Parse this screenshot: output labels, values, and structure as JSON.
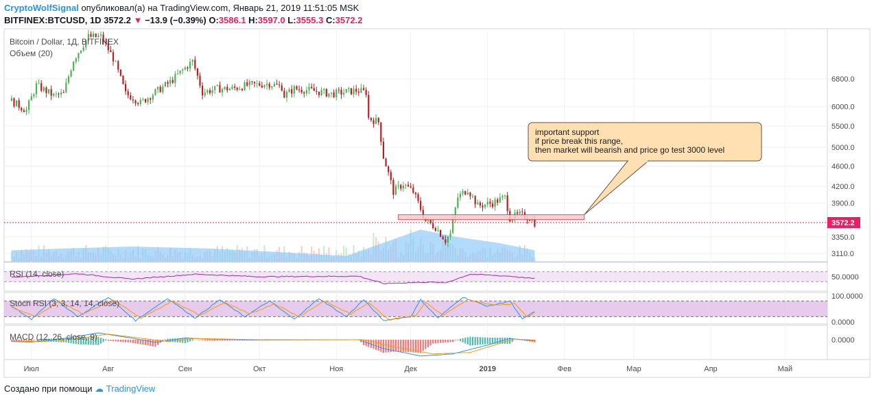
{
  "header": {
    "author": "CryptoWolfSignal",
    "published_text": "опубликовал(а) на TradingView.com, Январь 21, 2019 11:51:05 MSK",
    "symbol": "BITFINEX:BTCUSD, 1D",
    "last": "3572.2",
    "change": "−13.9 (−0.39%)",
    "o_label": "O:",
    "o_value": "3586.1",
    "h_label": "H:",
    "h_value": "3597.0",
    "l_label": "L:",
    "l_value": "3555.3",
    "c_label": "C:",
    "c_value": "3572.2"
  },
  "footer": {
    "created_text": "Создано при помощи",
    "brand": "TradingView"
  },
  "colors": {
    "up": "#4caf50",
    "down": "#b71c1c",
    "volume_ma": "#90caf9",
    "rsi": "#9c27b0",
    "stoch_k": "#2196f3",
    "stoch_d": "#ff9800",
    "macd": "#2196f3",
    "signal": "#ff9800",
    "support_box": "#f8c8cc",
    "note_bg": "#ffe0b2",
    "price_label": "#e91e63"
  },
  "chart_data": {
    "type": "candlestick",
    "legend_title": "Bitcoin / Dollar, 1Д, BITFINEX",
    "volume_label": "Объем (20)",
    "x_ticks": [
      "Июл",
      "Авг",
      "Сен",
      "Окт",
      "Ноя",
      "Дек",
      "2019",
      "Фев",
      "Мар",
      "Апр",
      "Май"
    ],
    "y_ticks": [
      "6800.0",
      "6000.0",
      "5500.0",
      "5000.0",
      "4600.0",
      "4200.0",
      "3900.0",
      "3350.0",
      "3110.0"
    ],
    "y_scale": "log",
    "last_price_label": "3572.2",
    "price_path": [
      [
        "2018-06-23",
        6150
      ],
      [
        "2018-06-29",
        5900
      ],
      [
        "2018-07-03",
        6600
      ],
      [
        "2018-07-10",
        6300
      ],
      [
        "2018-07-14",
        6350
      ],
      [
        "2018-07-18",
        7400
      ],
      [
        "2018-07-24",
        8200
      ],
      [
        "2018-07-29",
        8200
      ],
      [
        "2018-08-03",
        7450
      ],
      [
        "2018-08-08",
        6350
      ],
      [
        "2018-08-11",
        6250
      ],
      [
        "2018-08-14",
        6100
      ],
      [
        "2018-08-20",
        6400
      ],
      [
        "2018-08-26",
        6700
      ],
      [
        "2018-09-04",
        7350
      ],
      [
        "2018-09-08",
        6400
      ],
      [
        "2018-09-14",
        6500
      ],
      [
        "2018-09-20",
        6500
      ],
      [
        "2018-09-26",
        6600
      ],
      [
        "2018-10-05",
        6650
      ],
      [
        "2018-10-10",
        6550
      ],
      [
        "2018-10-11",
        6300
      ],
      [
        "2018-10-15",
        6500
      ],
      [
        "2018-10-22",
        6450
      ],
      [
        "2018-10-30",
        6350
      ],
      [
        "2018-11-09",
        6450
      ],
      [
        "2018-11-13",
        6400
      ],
      [
        "2018-11-14",
        5700
      ],
      [
        "2018-11-18",
        5600
      ],
      [
        "2018-11-20",
        4800
      ],
      [
        "2018-11-24",
        4100
      ],
      [
        "2018-11-28",
        4250
      ],
      [
        "2018-12-02",
        4100
      ],
      [
        "2018-12-07",
        3600
      ],
      [
        "2018-12-11",
        3500
      ],
      [
        "2018-12-15",
        3300
      ],
      [
        "2018-12-17",
        3400
      ],
      [
        "2018-12-20",
        4000
      ],
      [
        "2018-12-24",
        4150
      ],
      [
        "2018-12-28",
        3850
      ],
      [
        "2019-01-03",
        3900
      ],
      [
        "2019-01-08",
        4000
      ],
      [
        "2019-01-10",
        3650
      ],
      [
        "2019-01-14",
        3700
      ],
      [
        "2019-01-18",
        3650
      ],
      [
        "2019-01-20",
        3572
      ]
    ],
    "volume_ma": [
      [
        "2018-06-23",
        0.3
      ],
      [
        "2018-07-15",
        0.35
      ],
      [
        "2018-08-10",
        0.4
      ],
      [
        "2018-09-10",
        0.35
      ],
      [
        "2018-10-10",
        0.25
      ],
      [
        "2018-11-05",
        0.15
      ],
      [
        "2018-11-20",
        0.5
      ],
      [
        "2018-12-05",
        0.85
      ],
      [
        "2018-12-20",
        0.65
      ],
      [
        "2019-01-05",
        0.5
      ],
      [
        "2019-01-20",
        0.3
      ]
    ],
    "rsi": {
      "label": "RSI (14, close)",
      "upper": 70,
      "lower": 30,
      "tick": "50.0000",
      "values": [
        [
          "2018-06-23",
          48
        ],
        [
          "2018-07-20",
          62
        ],
        [
          "2018-08-10",
          40
        ],
        [
          "2018-09-05",
          60
        ],
        [
          "2018-10-01",
          50
        ],
        [
          "2018-11-10",
          52
        ],
        [
          "2018-11-20",
          22
        ],
        [
          "2018-12-07",
          28
        ],
        [
          "2018-12-15",
          25
        ],
        [
          "2018-12-25",
          60
        ],
        [
          "2019-01-10",
          52
        ],
        [
          "2019-01-20",
          42
        ]
      ]
    },
    "stoch_rsi": {
      "label": "Stoch RSI (3, 3, 14, 14, close)",
      "ticks": [
        "100.0000",
        "0.0000"
      ],
      "k_values": [
        [
          "2018-06-23",
          60
        ],
        [
          "2018-07-01",
          10
        ],
        [
          "2018-07-10",
          90
        ],
        [
          "2018-07-20",
          20
        ],
        [
          "2018-08-01",
          95
        ],
        [
          "2018-08-12",
          5
        ],
        [
          "2018-08-25",
          90
        ],
        [
          "2018-09-05",
          15
        ],
        [
          "2018-09-15",
          85
        ],
        [
          "2018-09-25",
          20
        ],
        [
          "2018-10-05",
          80
        ],
        [
          "2018-10-15",
          10
        ],
        [
          "2018-10-25",
          90
        ],
        [
          "2018-11-05",
          20
        ],
        [
          "2018-11-12",
          85
        ],
        [
          "2018-11-20",
          5
        ],
        [
          "2018-12-01",
          20
        ],
        [
          "2018-12-05",
          85
        ],
        [
          "2018-12-12",
          15
        ],
        [
          "2018-12-22",
          95
        ],
        [
          "2019-01-01",
          60
        ],
        [
          "2019-01-10",
          80
        ],
        [
          "2019-01-15",
          10
        ],
        [
          "2019-01-20",
          40
        ]
      ],
      "d_values": [
        [
          "2018-06-23",
          55
        ],
        [
          "2018-07-03",
          20
        ],
        [
          "2018-07-12",
          80
        ],
        [
          "2018-07-22",
          30
        ],
        [
          "2018-08-03",
          85
        ],
        [
          "2018-08-14",
          15
        ],
        [
          "2018-08-27",
          80
        ],
        [
          "2018-09-07",
          25
        ],
        [
          "2018-09-17",
          75
        ],
        [
          "2018-09-27",
          30
        ],
        [
          "2018-10-07",
          70
        ],
        [
          "2018-10-17",
          20
        ],
        [
          "2018-10-27",
          80
        ],
        [
          "2018-11-07",
          30
        ],
        [
          "2018-11-14",
          75
        ],
        [
          "2018-11-22",
          10
        ],
        [
          "2018-12-03",
          25
        ],
        [
          "2018-12-07",
          75
        ],
        [
          "2018-12-14",
          25
        ],
        [
          "2018-12-24",
          85
        ],
        [
          "2019-01-03",
          65
        ],
        [
          "2019-01-12",
          70
        ],
        [
          "2019-01-17",
          20
        ],
        [
          "2019-01-20",
          35
        ]
      ]
    },
    "macd": {
      "label": "MACD (12, 26, close, 9)",
      "tick": "0.0000",
      "macd_values": [
        [
          "2018-06-23",
          -60
        ],
        [
          "2018-07-01",
          -80
        ],
        [
          "2018-07-15",
          50
        ],
        [
          "2018-07-28",
          230
        ],
        [
          "2018-08-10",
          60
        ],
        [
          "2018-08-20",
          -90
        ],
        [
          "2018-09-01",
          60
        ],
        [
          "2018-09-10",
          20
        ],
        [
          "2018-10-01",
          -10
        ],
        [
          "2018-11-10",
          0
        ],
        [
          "2018-11-20",
          -300
        ],
        [
          "2018-12-05",
          -550
        ],
        [
          "2018-12-18",
          -480
        ],
        [
          "2019-01-01",
          -180
        ],
        [
          "2019-01-10",
          40
        ],
        [
          "2019-01-20",
          -40
        ]
      ],
      "signal_values": [
        [
          "2018-06-23",
          -40
        ],
        [
          "2018-07-05",
          -70
        ],
        [
          "2018-07-20",
          40
        ],
        [
          "2018-08-01",
          190
        ],
        [
          "2018-08-15",
          40
        ],
        [
          "2018-08-25",
          -60
        ],
        [
          "2018-09-05",
          40
        ],
        [
          "2018-10-01",
          0
        ],
        [
          "2018-11-12",
          0
        ],
        [
          "2018-11-25",
          -250
        ],
        [
          "2018-12-10",
          -480
        ],
        [
          "2018-12-25",
          -430
        ],
        [
          "2019-01-05",
          -150
        ],
        [
          "2019-01-12",
          20
        ],
        [
          "2019-01-20",
          -10
        ]
      ]
    },
    "support_zone": {
      "from": "2018-11-26",
      "to": "2019-02-09",
      "low": 3620,
      "high": 3700
    },
    "annotation": {
      "lines": [
        "important support",
        "if price break this range,",
        "then market will bearish and price go test 3000 level"
      ],
      "pointer_date": "2019-02-09",
      "pointer_price": 3700
    }
  }
}
